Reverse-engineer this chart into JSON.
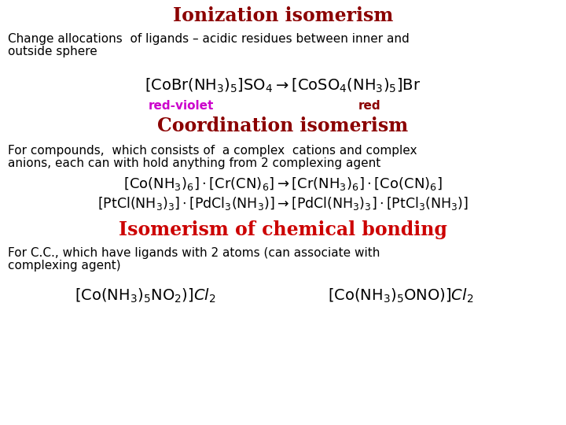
{
  "title": "Ionization isomerism",
  "title_color": "#8b0000",
  "title_fontsize": 17,
  "bg_color": "#ffffff",
  "section1_desc_line1": "Change allocations  of ligands – acidic residues between inner and",
  "section1_desc_line2": "outside sphere",
  "section2_title": "Coordination isomerism",
  "section2_title_color": "#8b0000",
  "section2_title_fontsize": 17,
  "section3_title": "Isomerism of chemical bonding",
  "section3_title_color": "#cc0000",
  "section3_title_fontsize": 17,
  "section2_desc_line1": "For compounds,  which consists of  a complex  cations and complex",
  "section2_desc_line2": "anions, each can with hold anything from 2 complexing agent",
  "section3_desc_line1": "For C.C., which have ligands with 2 atoms (can associate with",
  "section3_desc_line2": "complexing agent)",
  "label1": "red-violet",
  "label1_color": "#cc00cc",
  "label2": "red",
  "label2_color": "#8b0000",
  "desc_fontsize": 11,
  "formula_fontsize": 13,
  "label_fontsize": 11
}
